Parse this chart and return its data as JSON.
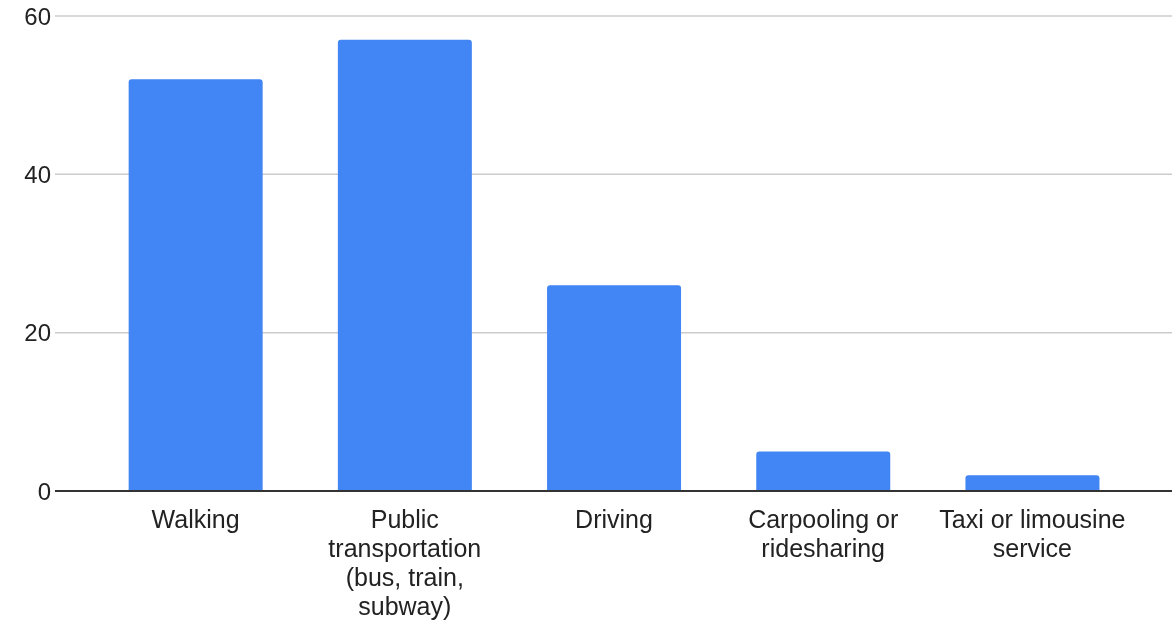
{
  "chart_data": {
    "type": "bar",
    "categories": [
      "Walking",
      "Public transportation (bus, train, subway)",
      "Driving",
      "Carpooling or ridesharing",
      "Taxi or limousine service"
    ],
    "values": [
      52,
      57,
      26,
      5,
      2
    ],
    "color": "#4285f4",
    "ylim": [
      0,
      60
    ],
    "yticks": [
      0,
      20,
      40,
      60
    ],
    "grid": "y"
  }
}
